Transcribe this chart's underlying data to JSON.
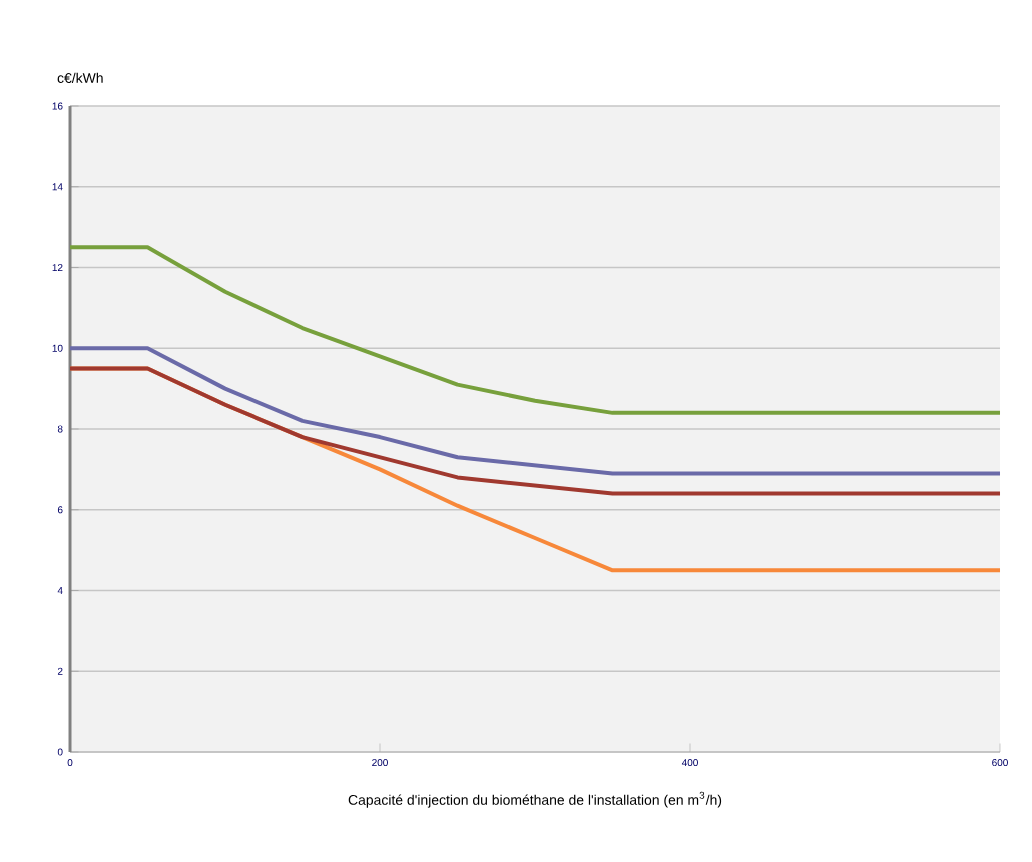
{
  "chart_data": {
    "type": "line",
    "xlabel": "Capacité d'injection du biométhane de l'installation (en m$^{3}$/h)",
    "ylabel": "c€/kWh",
    "x": [
      0,
      50,
      100,
      150,
      200,
      250,
      300,
      350,
      600
    ],
    "series": [
      {
        "color": "#f7883a",
        "values": [
          9.5,
          9.5,
          8.6,
          7.8,
          7.0,
          6.1,
          5.3,
          4.5,
          4.5
        ]
      },
      {
        "color": "#a0392f",
        "values": [
          9.5,
          9.5,
          8.6,
          7.8,
          7.3,
          6.8,
          6.6,
          6.4,
          6.4
        ]
      },
      {
        "color": "#6a6aa8",
        "values": [
          10,
          10,
          9.0,
          8.2,
          7.8,
          7.3,
          7.1,
          6.9,
          6.9
        ]
      },
      {
        "color": "#77a03c",
        "values": [
          12.5,
          12.5,
          11.4,
          10.5,
          9.8,
          9.1,
          8.7,
          8.4,
          8.4
        ]
      }
    ],
    "xlim": [
      0,
      600
    ],
    "xticks": [
      0,
      200,
      400,
      600
    ],
    "ylim": [
      0,
      16
    ],
    "yticks": [
      0,
      2,
      4,
      6,
      8,
      10,
      12,
      14,
      16
    ],
    "grid": "y",
    "marker": "none",
    "line_style": "solid"
  }
}
